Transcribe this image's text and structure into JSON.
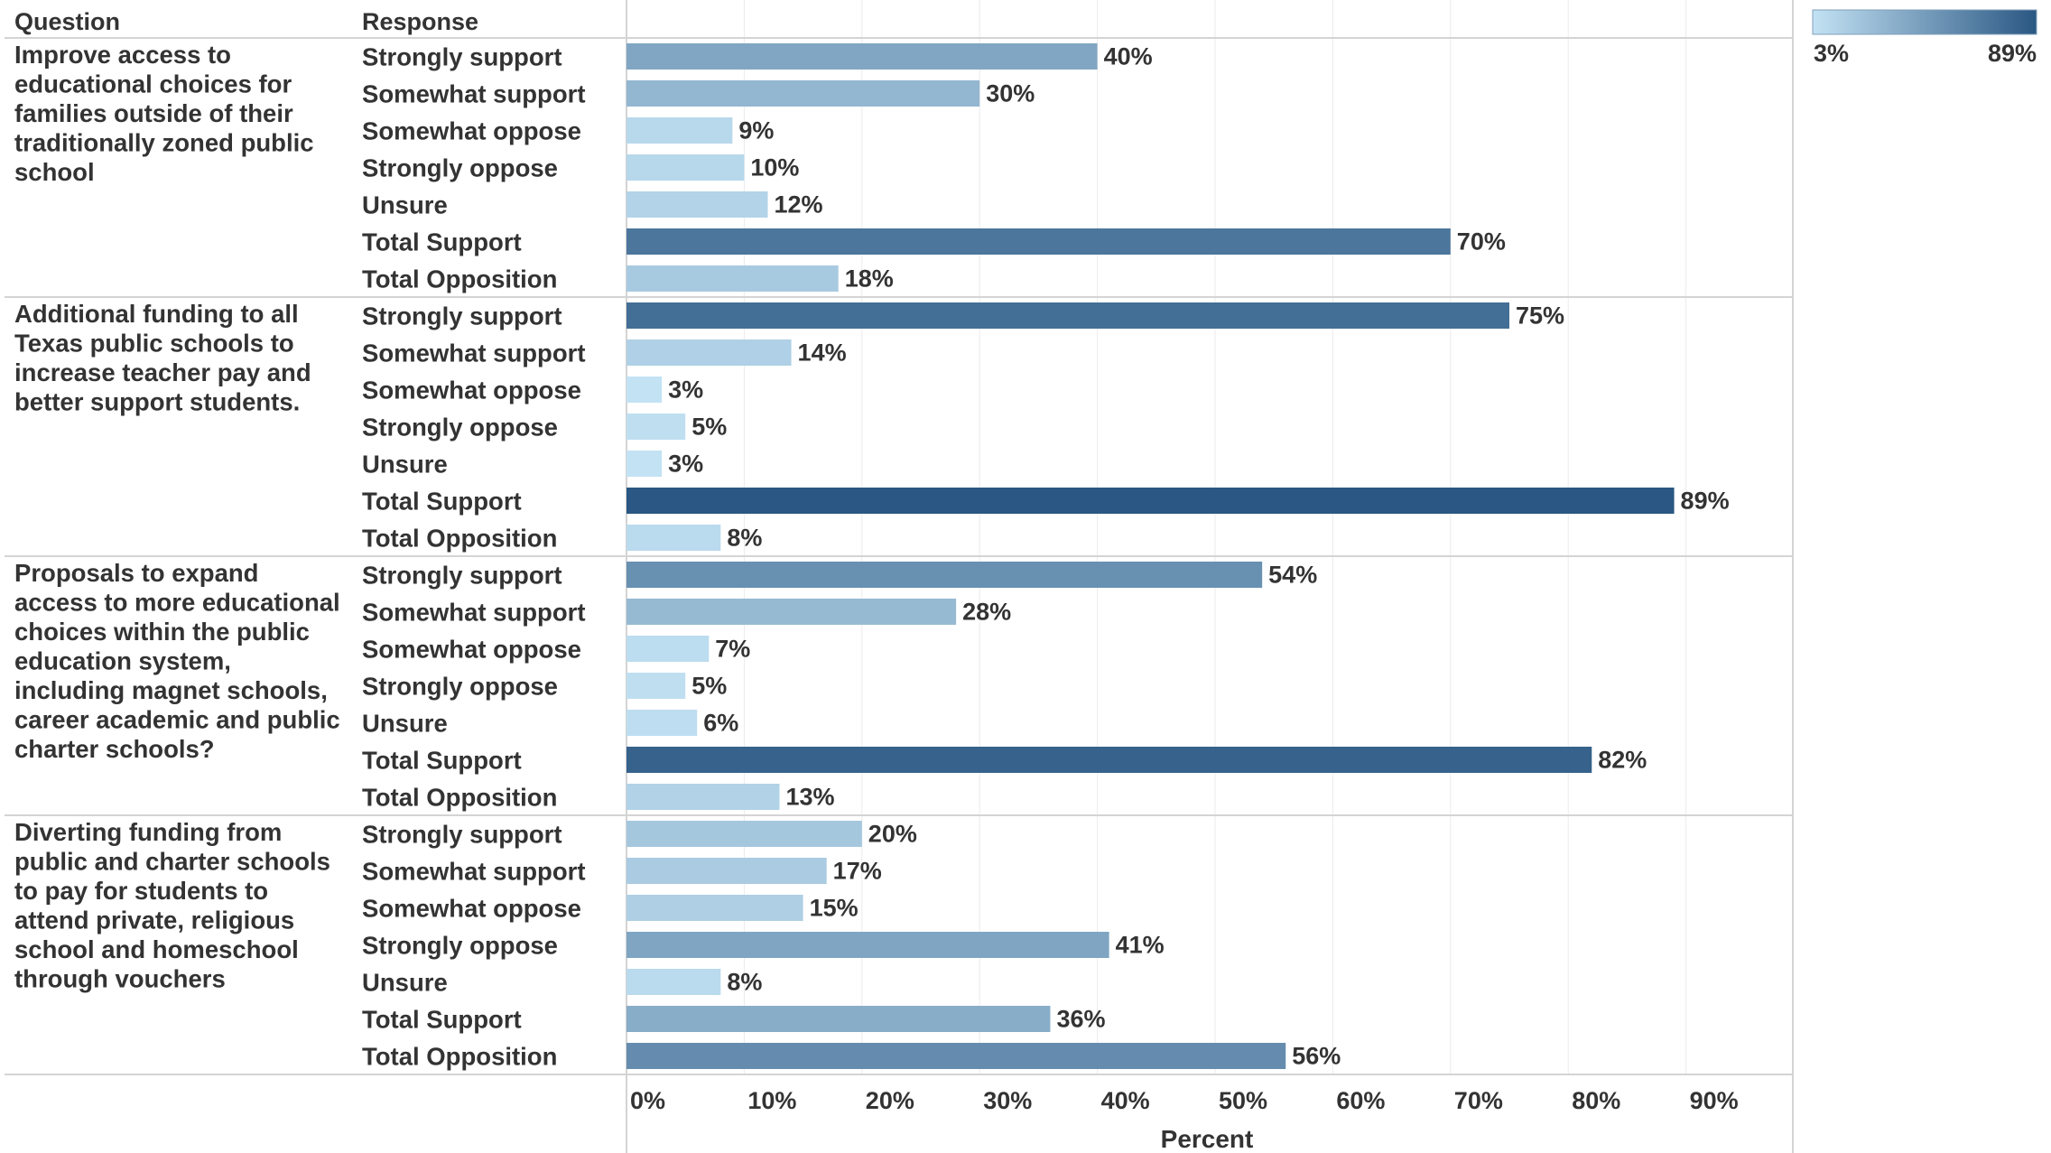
{
  "chart_data": {
    "type": "bar",
    "orientation": "horizontal",
    "header": {
      "question": "Question",
      "response": "Response"
    },
    "xlabel": "Percent",
    "xlim": [
      0,
      99
    ],
    "xticks": [
      "0%",
      "10%",
      "20%",
      "30%",
      "40%",
      "50%",
      "60%",
      "70%",
      "80%",
      "90%"
    ],
    "grid": true,
    "legend": {
      "type": "color-gradient",
      "position": "top-right",
      "min_label": "3%",
      "max_label": "89%",
      "min_color": "#c3e2f4",
      "max_color": "#2a5783"
    },
    "groups": [
      {
        "question": "Improve access to educational choices for families outside of their traditionally zoned public school",
        "question_lines": [
          "Improve access to",
          "educational choices for",
          "families outside of their",
          "traditionally zoned public",
          "school"
        ],
        "rows": [
          {
            "response": "Strongly support",
            "value": 40,
            "label": "40%"
          },
          {
            "response": "Somewhat support",
            "value": 30,
            "label": "30%"
          },
          {
            "response": "Somewhat oppose",
            "value": 9,
            "label": "9%"
          },
          {
            "response": "Strongly oppose",
            "value": 10,
            "label": "10%"
          },
          {
            "response": "Unsure",
            "value": 12,
            "label": "12%"
          },
          {
            "response": "Total Support",
            "value": 70,
            "label": "70%"
          },
          {
            "response": "Total Opposition",
            "value": 18,
            "label": "18%"
          }
        ]
      },
      {
        "question": "Additional funding to all Texas public schools to increase teacher pay and better support students.",
        "question_lines": [
          "Additional funding to all",
          "Texas public schools to",
          "increase teacher pay and",
          "better support students."
        ],
        "rows": [
          {
            "response": "Strongly support",
            "value": 75,
            "label": "75%"
          },
          {
            "response": "Somewhat support",
            "value": 14,
            "label": "14%"
          },
          {
            "response": "Somewhat oppose",
            "value": 3,
            "label": "3%"
          },
          {
            "response": "Strongly oppose",
            "value": 5,
            "label": "5%"
          },
          {
            "response": "Unsure",
            "value": 3,
            "label": "3%"
          },
          {
            "response": "Total Support",
            "value": 89,
            "label": "89%"
          },
          {
            "response": "Total Opposition",
            "value": 8,
            "label": "8%"
          }
        ]
      },
      {
        "question": "Proposals to expand access to more educational choices within the public education system, including magnet schools, career academic and public charter schools?",
        "question_lines": [
          "Proposals to expand",
          "access to more educational",
          "choices within the public",
          "education system,",
          "including magnet schools,",
          "career academic and public",
          "charter schools?"
        ],
        "rows": [
          {
            "response": "Strongly support",
            "value": 54,
            "label": "54%"
          },
          {
            "response": "Somewhat support",
            "value": 28,
            "label": "28%"
          },
          {
            "response": "Somewhat oppose",
            "value": 7,
            "label": "7%"
          },
          {
            "response": "Strongly oppose",
            "value": 5,
            "label": "5%"
          },
          {
            "response": "Unsure",
            "value": 6,
            "label": "6%"
          },
          {
            "response": "Total Support",
            "value": 82,
            "label": "82%"
          },
          {
            "response": "Total Opposition",
            "value": 13,
            "label": "13%"
          }
        ]
      },
      {
        "question": "Diverting funding from public and charter schools to pay for students to attend private, religious school and homeschool through vouchers",
        "question_lines": [
          "Diverting funding from",
          "public and charter schools",
          "to pay for students to",
          "attend private, religious",
          "school and homeschool",
          "through vouchers"
        ],
        "rows": [
          {
            "response": "Strongly support",
            "value": 20,
            "label": "20%"
          },
          {
            "response": "Somewhat support",
            "value": 17,
            "label": "17%"
          },
          {
            "response": "Somewhat oppose",
            "value": 15,
            "label": "15%"
          },
          {
            "response": "Strongly oppose",
            "value": 41,
            "label": "41%"
          },
          {
            "response": "Unsure",
            "value": 8,
            "label": "8%"
          },
          {
            "response": "Total Support",
            "value": 36,
            "label": "36%"
          },
          {
            "response": "Total Opposition",
            "value": 56,
            "label": "56%"
          }
        ]
      }
    ]
  }
}
